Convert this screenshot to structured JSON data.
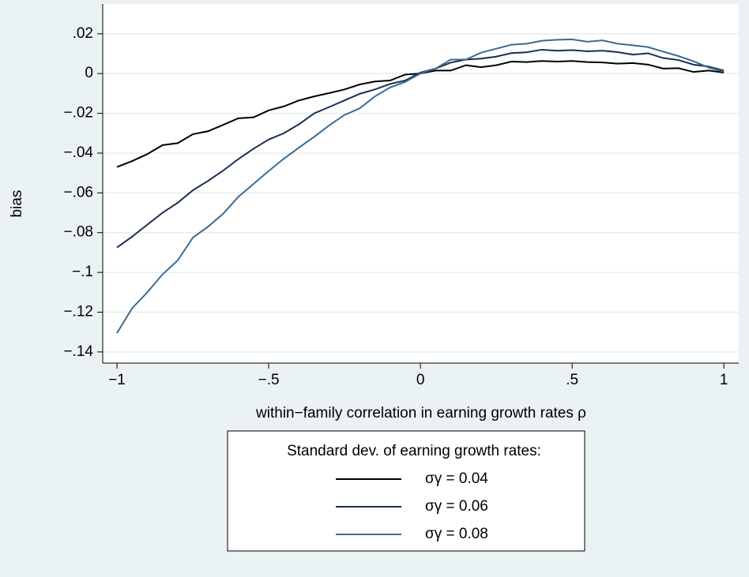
{
  "chart_data": {
    "type": "line",
    "y_label": "bias",
    "x_label": "within−family correlation in earning growth rates ρ",
    "legend_title": "Standard dev. of earning growth rates:",
    "legend_position": "bottom",
    "grid": true,
    "x": [
      -1,
      -0.95,
      -0.9,
      -0.85,
      -0.8,
      -0.75,
      -0.7,
      -0.65,
      -0.6,
      -0.55,
      -0.5,
      -0.45,
      -0.4,
      -0.35,
      -0.3,
      -0.25,
      -0.2,
      -0.15,
      -0.1,
      -0.05,
      0,
      0.05,
      0.1,
      0.15,
      0.2,
      0.25,
      0.3,
      0.35,
      0.4,
      0.45,
      0.5,
      0.55,
      0.6,
      0.65,
      0.7,
      0.75,
      0.8,
      0.85,
      0.9,
      0.95,
      1
    ],
    "series": [
      {
        "name": "σγ = 0.04",
        "color": "#000000",
        "values": [
          -0.047,
          -0.044,
          -0.0405,
          -0.036,
          -0.035,
          -0.0305,
          -0.029,
          -0.0258,
          -0.0225,
          -0.022,
          -0.0185,
          -0.0165,
          -0.0135,
          -0.0115,
          -0.0098,
          -0.008,
          -0.0055,
          -0.004,
          -0.0035,
          -0.0005,
          0,
          0.0015,
          0.0015,
          0.0042,
          0.0032,
          0.0042,
          0.006,
          0.0058,
          0.0063,
          0.006,
          0.0063,
          0.0058,
          0.0056,
          0.005,
          0.0053,
          0.0045,
          0.0025,
          0.0027,
          0.0008,
          0.0015,
          0.0005
        ]
      },
      {
        "name": "σγ = 0.06",
        "color": "#1a2e52",
        "values": [
          -0.0875,
          -0.082,
          -0.076,
          -0.07,
          -0.065,
          -0.0587,
          -0.054,
          -0.0488,
          -0.043,
          -0.0378,
          -0.0332,
          -0.03,
          -0.0255,
          -0.02,
          -0.0168,
          -0.0135,
          -0.0102,
          -0.008,
          -0.0052,
          -0.0035,
          0.0005,
          0.0025,
          0.0055,
          0.007,
          0.0075,
          0.0085,
          0.0103,
          0.0107,
          0.012,
          0.0115,
          0.0118,
          0.0112,
          0.0115,
          0.0108,
          0.0095,
          0.0102,
          0.0078,
          0.0068,
          0.0045,
          0.0035,
          0.0015
        ]
      },
      {
        "name": "σγ = 0.08",
        "color": "#3b6a92",
        "values": [
          -0.1305,
          -0.118,
          -0.11,
          -0.101,
          -0.094,
          -0.0825,
          -0.077,
          -0.0705,
          -0.062,
          -0.0555,
          -0.049,
          -0.0428,
          -0.0372,
          -0.0318,
          -0.026,
          -0.0208,
          -0.0175,
          -0.0115,
          -0.007,
          -0.0042,
          0,
          0.0025,
          0.007,
          0.007,
          0.0105,
          0.0125,
          0.0145,
          0.015,
          0.0165,
          0.017,
          0.0172,
          0.016,
          0.0167,
          0.015,
          0.0142,
          0.0133,
          0.011,
          0.0088,
          0.0062,
          0.003,
          0.001
        ]
      }
    ],
    "xlim": [
      -1.047,
      1.049
    ],
    "ylim": [
      -0.1456,
      0.035
    ],
    "xticks": [
      {
        "value": -1,
        "label": "−1"
      },
      {
        "value": -0.5,
        "label": "−.5"
      },
      0,
      {
        "value": 0.5,
        "label": ".5"
      },
      1
    ],
    "yticks": [
      {
        "value": 0.02,
        "label": ".02"
      },
      0,
      {
        "value": -0.02,
        "label": "−.02"
      },
      {
        "value": -0.04,
        "label": "−.04"
      },
      {
        "value": -0.06,
        "label": "−.06"
      },
      {
        "value": -0.08,
        "label": "−.08"
      },
      {
        "value": -0.1,
        "label": "−.1"
      },
      {
        "value": -0.12,
        "label": "−.12"
      },
      {
        "value": -0.14,
        "label": "−.14"
      }
    ]
  }
}
